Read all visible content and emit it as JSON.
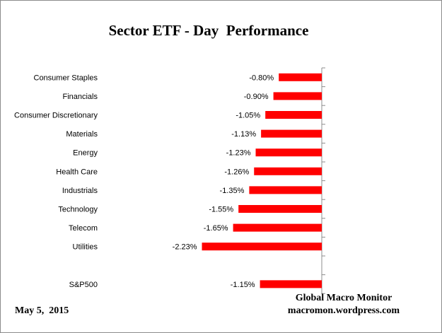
{
  "chart_data": {
    "type": "bar",
    "orientation": "horizontal",
    "title": "Sector ETF - Day  Performance",
    "categories": [
      "Consumer Staples",
      "Financials",
      "Consumer Discretionary",
      "Materials",
      "Energy",
      "Health Care",
      "Industrials",
      "Technology",
      "Telecom",
      "Utilities",
      "",
      "S&P500"
    ],
    "values": [
      -0.8,
      -0.9,
      -1.05,
      -1.13,
      -1.23,
      -1.26,
      -1.35,
      -1.55,
      -1.65,
      -2.23,
      null,
      -1.15
    ],
    "value_labels": [
      "-0.80%",
      "-0.90%",
      "-1.05%",
      "-1.13%",
      "-1.23%",
      "-1.26%",
      "-1.35%",
      "-1.55%",
      "-1.65%",
      "-2.23%",
      "",
      "-1.15%"
    ],
    "unit": "%",
    "xlim": [
      -3.5,
      0
    ],
    "bar_color": "#ff0000",
    "grid": false,
    "legend": "none"
  },
  "footer": {
    "date": "May 5,  2015",
    "source_name": "Global Macro Monitor",
    "source_url": "macromon.wordpress.com"
  }
}
